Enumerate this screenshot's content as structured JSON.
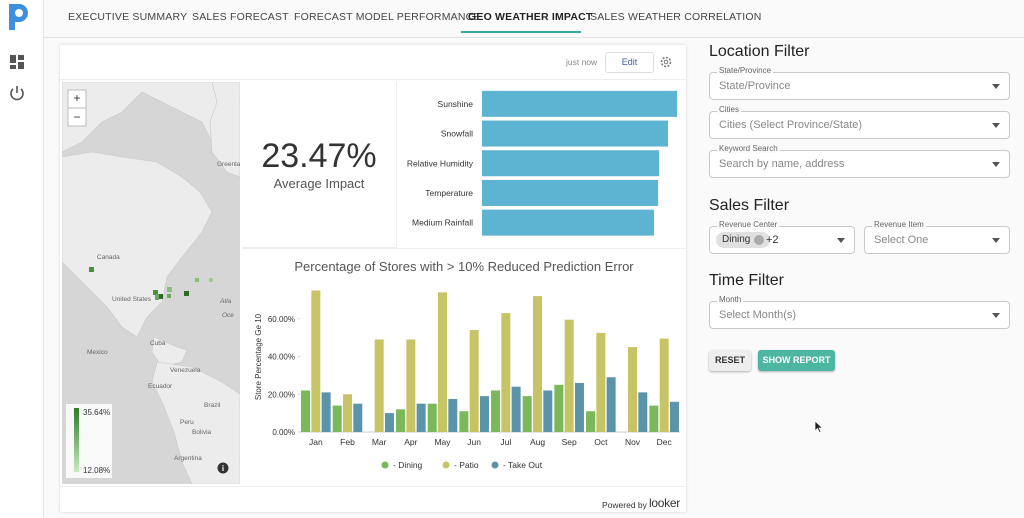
{
  "nav": {
    "tabs": [
      "EXECUTIVE SUMMARY",
      "SALES FORECAST",
      "FORECAST MODEL PERFORMANCE",
      "GEO WEATHER IMPACT",
      "SALES WEATHER CORRELATION"
    ],
    "active": 3
  },
  "card": {
    "timestamp": "just now",
    "edit": "Edit",
    "powered_by": "Powered by",
    "brand": "looker",
    "map": {
      "labels": [
        "Greenla",
        "Canada",
        "United States",
        "Atla",
        "Oce",
        "Mexico",
        "Cuba",
        "Venezuela",
        "Ecuador",
        "Brazil",
        "Peru",
        "Bolivia",
        "Argentina"
      ],
      "legend_max": "35.64%",
      "legend_min": "12.08%"
    },
    "kpi": {
      "value": "23.47%",
      "label": "Average Impact"
    }
  },
  "chart_data": [
    {
      "type": "hbar",
      "categories": [
        "Sunshine",
        "Snowfall",
        "Relative Humidity",
        "Temperature",
        "Medium Rainfall"
      ],
      "values": [
        100,
        95.4,
        90.8,
        90.3,
        88.2
      ],
      "xlim": [
        0,
        100
      ],
      "color": "#5db3d2"
    },
    {
      "type": "bar",
      "title": "Percentage of Stores with > 10% Reduced Prediction Error",
      "y_label": "Store Percentage Ge 10",
      "categories": [
        "Jan",
        "Feb",
        "Mar",
        "Apr",
        "May",
        "Jun",
        "Jul",
        "Aug",
        "Sep",
        "Oct",
        "Nov",
        "Dec"
      ],
      "series": [
        {
          "name": "- Dining",
          "color": "#7ab85a",
          "values": [
            22,
            14,
            0,
            12,
            15,
            11,
            22,
            19,
            25,
            11,
            0,
            14
          ]
        },
        {
          "name": "- Patio",
          "color": "#c7c466",
          "values": [
            75,
            20,
            49,
            49,
            74,
            54,
            63,
            72,
            59.5,
            52.5,
            45,
            49.5
          ]
        },
        {
          "name": "- Take Out",
          "color": "#5b94aa",
          "values": [
            21,
            15,
            10,
            15,
            17.5,
            19,
            24,
            22,
            26,
            29,
            21,
            16
          ]
        }
      ],
      "ylim": [
        0,
        80
      ],
      "yticks": [
        {
          "value": 0,
          "label": "0.00%"
        },
        {
          "value": 20,
          "label": "20.00%"
        },
        {
          "value": 40,
          "label": "40.00%"
        },
        {
          "value": 60,
          "label": "60.00%"
        }
      ],
      "grid": false
    }
  ],
  "filters": {
    "location": {
      "title": "Location Filter",
      "fields": [
        {
          "label": "State/Province",
          "placeholder": "State/Province"
        },
        {
          "label": "Cities",
          "placeholder": "Cities (Select Province/State)"
        },
        {
          "label": "Keyword Search",
          "placeholder": "Search by name, address"
        }
      ]
    },
    "sales": {
      "title": "Sales Filter",
      "revenue_center": {
        "label": "Revenue Center",
        "chip": "Dining",
        "more": "+2"
      },
      "revenue_item": {
        "label": "Revenue Item",
        "placeholder": "Select One"
      }
    },
    "time": {
      "title": "Time Filter",
      "month": {
        "label": "Month",
        "placeholder": "Select Month(s)"
      }
    },
    "reset": "RESET",
    "show_report": "SHOW REPORT"
  }
}
